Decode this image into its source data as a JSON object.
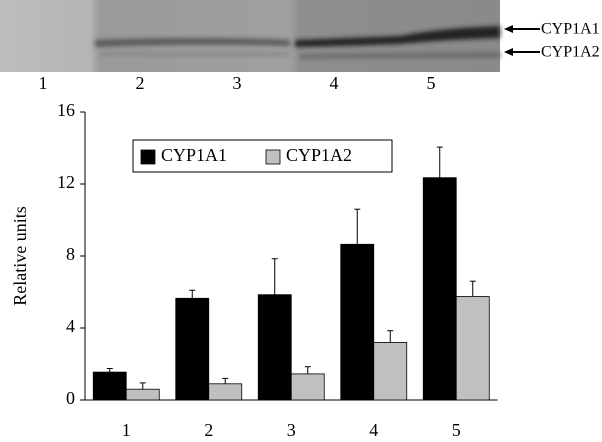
{
  "blot": {
    "lanes": [
      "1",
      "2",
      "3",
      "4",
      "5"
    ],
    "bands": [
      "CYP1A1",
      "CYP1A2"
    ]
  },
  "chart_data": {
    "type": "bar",
    "y_label": "Relative units",
    "categories": [
      "1",
      "2",
      "3",
      "4",
      "5"
    ],
    "series": [
      {
        "name": "CYP1A1",
        "color": "#000000",
        "values": [
          1.55,
          5.65,
          5.85,
          8.65,
          12.35
        ],
        "errors": [
          0.2,
          0.45,
          2.0,
          1.95,
          1.7
        ]
      },
      {
        "name": "CYP1A2",
        "color": "#c0c0c0",
        "values": [
          0.6,
          0.9,
          1.45,
          3.2,
          5.75
        ],
        "errors": [
          0.35,
          0.3,
          0.4,
          0.65,
          0.85
        ]
      }
    ],
    "ylim": [
      0,
      16
    ],
    "yticks": [
      0,
      4,
      8,
      12,
      16
    ],
    "grid": false,
    "legend": "upper-left"
  }
}
